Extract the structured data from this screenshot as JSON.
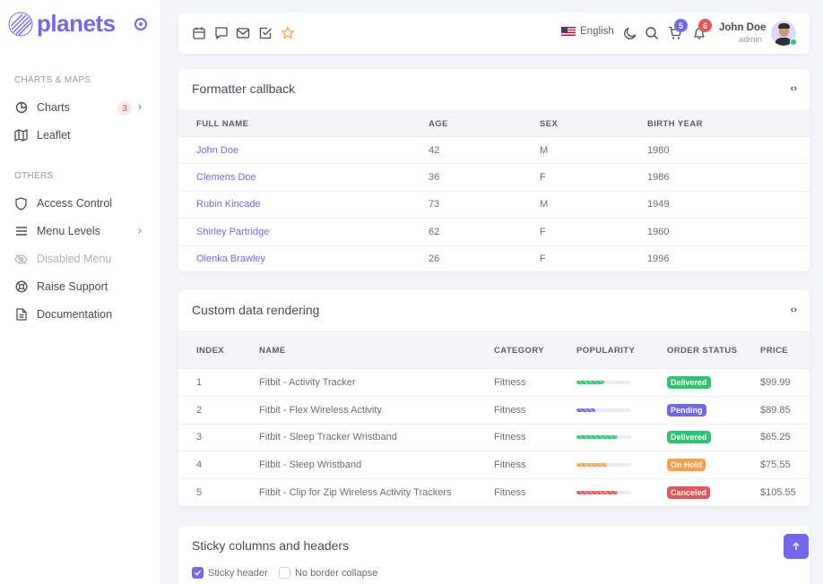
{
  "brand": {
    "name": "planets",
    "accent": "#7367f0"
  },
  "sidebar": {
    "sections": [
      {
        "title": "CHARTS & MAPS"
      },
      {
        "title": "OTHERS"
      }
    ],
    "items": [
      {
        "label": "Charts",
        "icon": "pie-chart-icon",
        "badge": "3",
        "chevron": true
      },
      {
        "label": "Leaflet",
        "icon": "map-icon"
      },
      {
        "label": "Access Control",
        "icon": "shield-icon"
      },
      {
        "label": "Menu Levels",
        "icon": "menu-icon",
        "chevron": true
      },
      {
        "label": "Disabled Menu",
        "icon": "eye-off-icon",
        "disabled": true
      },
      {
        "label": "Raise Support",
        "icon": "lifebuoy-icon"
      },
      {
        "label": "Documentation",
        "icon": "file-text-icon"
      }
    ]
  },
  "topbar": {
    "language": "English",
    "cart_count": "5",
    "notification_count": "6",
    "user": {
      "name": "John Doe",
      "role": "admin"
    }
  },
  "formatter_card": {
    "title": "Formatter callback",
    "columns": [
      "FULL NAME",
      "AGE",
      "SEX",
      "BIRTH YEAR"
    ],
    "rows": [
      [
        "John Doe",
        "42",
        "M",
        "1980"
      ],
      [
        "Clemens Doe",
        "36",
        "F",
        "1986"
      ],
      [
        "Rubin Kincade",
        "73",
        "M",
        "1949"
      ],
      [
        "Shirley Partridge",
        "62",
        "F",
        "1960"
      ],
      [
        "Olenka Brawley",
        "26",
        "F",
        "1996"
      ]
    ]
  },
  "custom_card": {
    "title": "Custom data rendering",
    "columns": [
      "INDEX",
      "NAME",
      "CATEGORY",
      "POPULARITY",
      "ORDER STATUS",
      "PRICE"
    ],
    "rows": [
      {
        "index": "1",
        "name": "Fitbit - Activity Tracker",
        "category": "Fitness",
        "popularity": 0.5,
        "pop_color": "#28c76f",
        "status": "Delivered",
        "status_color": "#28c76f",
        "price": "$99.99"
      },
      {
        "index": "2",
        "name": "Fitbit - Flex Wireless Activity",
        "category": "Fitness",
        "popularity": 0.35,
        "pop_color": "#7367f0",
        "status": "Pending",
        "status_color": "#7367f0",
        "price": "$89.85"
      },
      {
        "index": "3",
        "name": "Fitbit - Sleep Tracker Wristband",
        "category": "Fitness",
        "popularity": 0.75,
        "pop_color": "#28c76f",
        "status": "Delivered",
        "status_color": "#28c76f",
        "price": "$65.25"
      },
      {
        "index": "4",
        "name": "Fitbit - Sleep Wristband",
        "category": "Fitness",
        "popularity": 0.55,
        "pop_color": "#ff9f43",
        "status": "On Hold",
        "status_color": "#ff9f43",
        "price": "$75.55"
      },
      {
        "index": "5",
        "name": "Fitbit - Clip for Zip Wireless Activity Trackers",
        "category": "Fitness",
        "popularity": 0.75,
        "pop_color": "#ea5455",
        "status": "Canceled",
        "status_color": "#ea5455",
        "price": "$105.55"
      }
    ]
  },
  "sticky_card": {
    "title": "Sticky columns and headers",
    "options": [
      {
        "label": "Sticky header",
        "checked": true
      },
      {
        "label": "No border collapse",
        "checked": false
      }
    ]
  }
}
